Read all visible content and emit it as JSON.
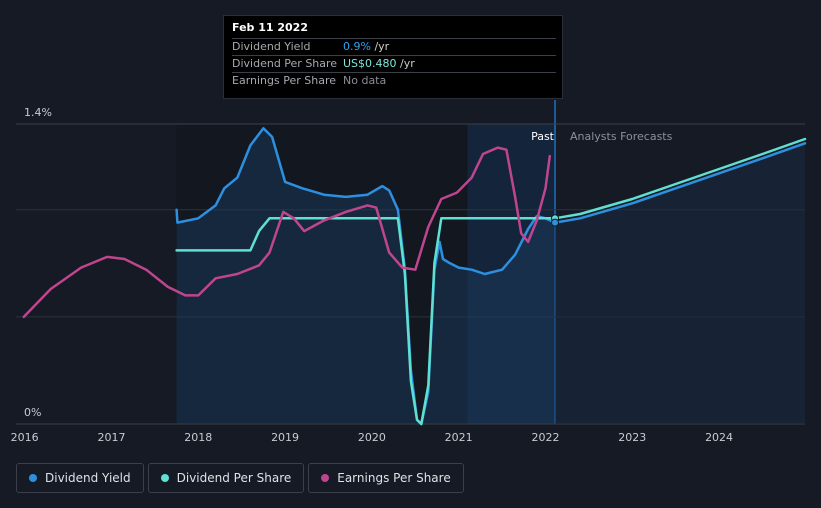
{
  "tooltip": {
    "date": "Feb 11 2022",
    "rows": [
      {
        "label": "Dividend Yield",
        "value": "0.9%",
        "value_color": "#2fa4f0",
        "unit": " /yr"
      },
      {
        "label": "Dividend Per Share",
        "value": "US$0.480",
        "value_color": "#7ee8dc",
        "unit": " /yr"
      },
      {
        "label": "Earnings Per Share",
        "value": "No data",
        "value_color": "#8a8d94",
        "unit": ""
      }
    ]
  },
  "labels": {
    "past": "Past",
    "forecast": "Analysts Forecasts"
  },
  "legend": [
    {
      "label": "Dividend Yield",
      "color": "#2d8fe0"
    },
    {
      "label": "Dividend Per Share",
      "color": "#5fe0d0"
    },
    {
      "label": "Earnings Per Share",
      "color": "#c0458f"
    }
  ],
  "chart_data": {
    "type": "line",
    "xlim": [
      2015.9,
      2024.99
    ],
    "ylim": [
      0,
      1.4
    ],
    "y_tick_labels": [
      {
        "value": 1.4,
        "label": "1.4%"
      },
      {
        "value": 0,
        "label": "0%"
      }
    ],
    "gridlines": [
      1.0,
      0.5
    ],
    "x_ticks": [
      2016,
      2017,
      2018,
      2019,
      2020,
      2021,
      2022,
      2023,
      2024
    ],
    "data_start": 2017.75,
    "today": 2022.11,
    "highlight_start": 2021.1,
    "series": [
      {
        "name": "Dividend Yield",
        "color": "#2d8fe0",
        "fill": true,
        "points": [
          [
            2017.75,
            1.0
          ],
          [
            2017.76,
            0.94
          ],
          [
            2018.0,
            0.96
          ],
          [
            2018.2,
            1.02
          ],
          [
            2018.3,
            1.1
          ],
          [
            2018.45,
            1.15
          ],
          [
            2018.6,
            1.3
          ],
          [
            2018.75,
            1.38
          ],
          [
            2018.85,
            1.34
          ],
          [
            2019.0,
            1.13
          ],
          [
            2019.2,
            1.1
          ],
          [
            2019.45,
            1.07
          ],
          [
            2019.7,
            1.06
          ],
          [
            2019.95,
            1.07
          ],
          [
            2020.12,
            1.11
          ],
          [
            2020.2,
            1.09
          ],
          [
            2020.3,
            1.0
          ],
          [
            2020.38,
            0.72
          ],
          [
            2020.45,
            0.25
          ],
          [
            2020.52,
            0.02
          ],
          [
            2020.57,
            0.0
          ],
          [
            2020.65,
            0.15
          ],
          [
            2020.72,
            0.72
          ],
          [
            2020.78,
            0.85
          ],
          [
            2020.82,
            0.77
          ],
          [
            2020.9,
            0.75
          ],
          [
            2021.0,
            0.73
          ],
          [
            2021.15,
            0.72
          ],
          [
            2021.3,
            0.7
          ],
          [
            2021.5,
            0.72
          ],
          [
            2021.65,
            0.79
          ],
          [
            2021.8,
            0.91
          ],
          [
            2021.9,
            0.97
          ],
          [
            2022.0,
            0.96
          ],
          [
            2022.11,
            0.94
          ]
        ]
      },
      {
        "name": "Dividend Per Share",
        "color": "#5fe0d0",
        "points": [
          [
            2017.75,
            0.81
          ],
          [
            2018.6,
            0.81
          ],
          [
            2018.7,
            0.9
          ],
          [
            2018.82,
            0.96
          ],
          [
            2019.0,
            0.96
          ],
          [
            2019.5,
            0.96
          ],
          [
            2020.0,
            0.96
          ],
          [
            2020.3,
            0.96
          ],
          [
            2020.38,
            0.7
          ],
          [
            2020.45,
            0.2
          ],
          [
            2020.52,
            0.02
          ],
          [
            2020.57,
            0.0
          ],
          [
            2020.65,
            0.18
          ],
          [
            2020.72,
            0.75
          ],
          [
            2020.8,
            0.96
          ],
          [
            2021.0,
            0.96
          ],
          [
            2021.5,
            0.96
          ],
          [
            2022.0,
            0.96
          ],
          [
            2022.11,
            0.96
          ]
        ]
      },
      {
        "name": "Earnings Per Share",
        "color": "#c0458f",
        "points": [
          [
            2015.99,
            0.5
          ],
          [
            2016.3,
            0.63
          ],
          [
            2016.65,
            0.73
          ],
          [
            2016.95,
            0.78
          ],
          [
            2017.15,
            0.77
          ],
          [
            2017.4,
            0.72
          ],
          [
            2017.65,
            0.64
          ],
          [
            2017.85,
            0.6
          ],
          [
            2018.0,
            0.6
          ],
          [
            2018.2,
            0.68
          ],
          [
            2018.45,
            0.7
          ],
          [
            2018.7,
            0.74
          ],
          [
            2018.82,
            0.8
          ],
          [
            2018.98,
            0.99
          ],
          [
            2019.1,
            0.96
          ],
          [
            2019.22,
            0.9
          ],
          [
            2019.45,
            0.95
          ],
          [
            2019.7,
            0.99
          ],
          [
            2019.95,
            1.02
          ],
          [
            2020.05,
            1.01
          ],
          [
            2020.2,
            0.8
          ],
          [
            2020.35,
            0.73
          ],
          [
            2020.5,
            0.72
          ],
          [
            2020.65,
            0.92
          ],
          [
            2020.8,
            1.05
          ],
          [
            2020.98,
            1.08
          ],
          [
            2021.15,
            1.15
          ],
          [
            2021.28,
            1.26
          ],
          [
            2021.45,
            1.29
          ],
          [
            2021.55,
            1.28
          ],
          [
            2021.65,
            1.06
          ],
          [
            2021.72,
            0.89
          ],
          [
            2021.8,
            0.85
          ],
          [
            2021.9,
            0.95
          ],
          [
            2022.0,
            1.1
          ],
          [
            2022.05,
            1.25
          ]
        ]
      },
      {
        "name": "Dividend Per Share (forecast)",
        "color": "#5fe0d0",
        "forecast": true,
        "points": [
          [
            2022.11,
            0.96
          ],
          [
            2022.4,
            0.98
          ],
          [
            2023.0,
            1.05
          ],
          [
            2023.5,
            1.12
          ],
          [
            2024.0,
            1.19
          ],
          [
            2024.5,
            1.26
          ],
          [
            2024.99,
            1.33
          ]
        ]
      },
      {
        "name": "Dividend Yield (forecast)",
        "color": "#2d8fe0",
        "forecast": true,
        "points": [
          [
            2022.11,
            0.94
          ],
          [
            2022.4,
            0.96
          ],
          [
            2023.0,
            1.03
          ],
          [
            2023.5,
            1.1
          ],
          [
            2024.0,
            1.17
          ],
          [
            2024.5,
            1.24
          ],
          [
            2024.99,
            1.31
          ]
        ]
      }
    ]
  }
}
